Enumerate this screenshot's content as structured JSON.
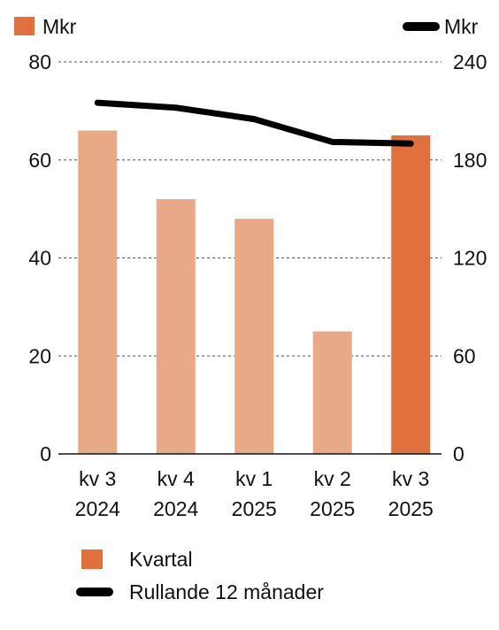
{
  "chart_data": {
    "type": "bar",
    "categories": [
      [
        "kv 3",
        "2024"
      ],
      [
        "kv 4",
        "2024"
      ],
      [
        "kv 1",
        "2025"
      ],
      [
        "kv 2",
        "2025"
      ],
      [
        "kv 3",
        "2025"
      ]
    ],
    "series": [
      {
        "name": "Kvartal",
        "type": "bar",
        "axis": "left",
        "values": [
          66,
          52,
          48,
          25,
          65
        ]
      },
      {
        "name": "Rullande 12 månader",
        "type": "line",
        "axis": "right",
        "values": [
          215,
          212,
          205,
          191,
          190
        ]
      }
    ],
    "highlight_index": 4,
    "left_axis": {
      "unit": "Mkr",
      "ylim": [
        0,
        80
      ],
      "ticks": [
        0,
        20,
        40,
        60,
        80
      ]
    },
    "right_axis": {
      "unit": "Mkr",
      "ylim": [
        0,
        240
      ],
      "ticks": [
        0,
        60,
        120,
        180,
        240
      ]
    },
    "grid": true,
    "legend_position": "bottom",
    "colors": {
      "bar": "#e8a987",
      "bar_highlight": "#e2703d",
      "line": "#000000",
      "grid": "#555555"
    }
  }
}
